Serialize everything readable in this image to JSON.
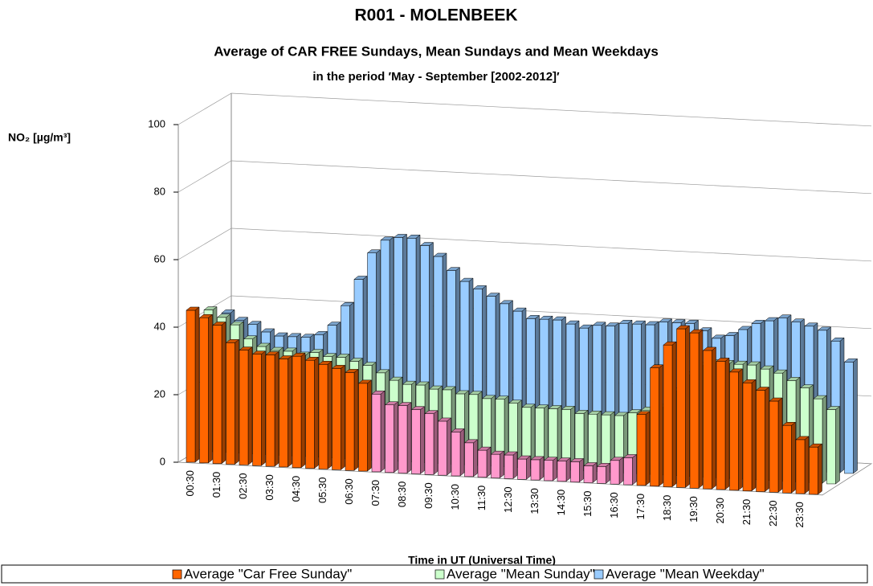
{
  "chart_data": {
    "type": "bar3d",
    "title": "R001 - MOLENBEEK",
    "subtitle": "Average of CAR FREE Sundays, Mean Sundays and Mean Weekdays",
    "subtitle2": "in the period  ′May - September [2002-2012]′",
    "x_label": "Time in UT (Universal Time)",
    "y_label": "NO₂  [µg/m³]",
    "categories": [
      "00:30",
      null,
      "01:30",
      null,
      "02:30",
      null,
      "03:30",
      null,
      "04:30",
      null,
      "05:30",
      null,
      "06:30",
      null,
      "07:30",
      null,
      "08:30",
      null,
      "09:30",
      null,
      "10:30",
      null,
      "11:30",
      null,
      "12:30",
      null,
      "13:30",
      null,
      "14:30",
      null,
      "15:30",
      null,
      "16:30",
      null,
      "17:30",
      null,
      "18:30",
      null,
      "19:30",
      null,
      "20:30",
      null,
      "21:30",
      null,
      "22:30",
      null,
      "23:30",
      null
    ],
    "series": [
      {
        "name": "Average \"Car Free Sunday\"",
        "color": "#ff6600",
        "colors": [
          "#ff6600",
          "#ff6600",
          "#ff6600",
          "#ff6600",
          "#ff6600",
          "#ff6600",
          "#ff6600",
          "#ff6600",
          "#ff6600",
          "#ff6600",
          "#ff6600",
          "#ff6600",
          "#ff6600",
          "#ff6600",
          "#ff99cc",
          "#ff99cc",
          "#ff99cc",
          "#ff99cc",
          "#ff99cc",
          "#ff99cc",
          "#ff99cc",
          "#ff99cc",
          "#ff99cc",
          "#ff99cc",
          "#ff99cc",
          "#ff99cc",
          "#ff99cc",
          "#ff99cc",
          "#ff99cc",
          "#ff99cc",
          "#ff99cc",
          "#ff99cc",
          "#ff99cc",
          "#ff99cc",
          "#ff6600",
          "#ff6600",
          "#ff6600",
          "#ff6600",
          "#ff6600",
          "#ff6600",
          "#ff6600",
          "#ff6600",
          "#ff6600",
          "#ff6600",
          "#ff6600",
          "#ff6600",
          "#ff6600",
          "#ff6600"
        ],
        "values": [
          45,
          43,
          41,
          36,
          34,
          33,
          33,
          32,
          33,
          32,
          31,
          30,
          29,
          26,
          23,
          20,
          20,
          19,
          18,
          16,
          13,
          10,
          8,
          7,
          7,
          6,
          6,
          6,
          6,
          6,
          5,
          5,
          7,
          8,
          21,
          35,
          42,
          47,
          46,
          41,
          38,
          35,
          32,
          30,
          27,
          20,
          16,
          14
        ]
      },
      {
        "name": "Average \"Mean Sunday\"",
        "color": "#ccffcc",
        "values": [
          42,
          40,
          38,
          34,
          32,
          31,
          31,
          30,
          31,
          30,
          30,
          29,
          28,
          26,
          24,
          23,
          23,
          22,
          22,
          21,
          21,
          20,
          20,
          19,
          18,
          18,
          18,
          18,
          17,
          17,
          17,
          17,
          18,
          19,
          20,
          25,
          30,
          33,
          34,
          34,
          34,
          34,
          33,
          32,
          30,
          28,
          25,
          22
        ]
      },
      {
        "name": "Average \"Mean Weekday\"",
        "color": "#99ccff",
        "values": [
          38,
          36,
          35,
          33,
          32,
          32,
          32,
          33,
          36,
          42,
          50,
          58,
          62,
          63,
          63,
          61,
          58,
          54,
          51,
          49,
          47,
          45,
          43,
          41,
          41,
          41,
          40,
          39,
          40,
          40,
          41,
          41,
          41,
          42,
          42,
          42,
          40,
          38,
          39,
          41,
          43,
          44,
          45,
          44,
          43,
          42,
          39,
          33
        ]
      }
    ],
    "ylim": [
      0,
      100
    ],
    "yticks": [
      0,
      20,
      40,
      60,
      80,
      100
    ],
    "grid": true
  }
}
